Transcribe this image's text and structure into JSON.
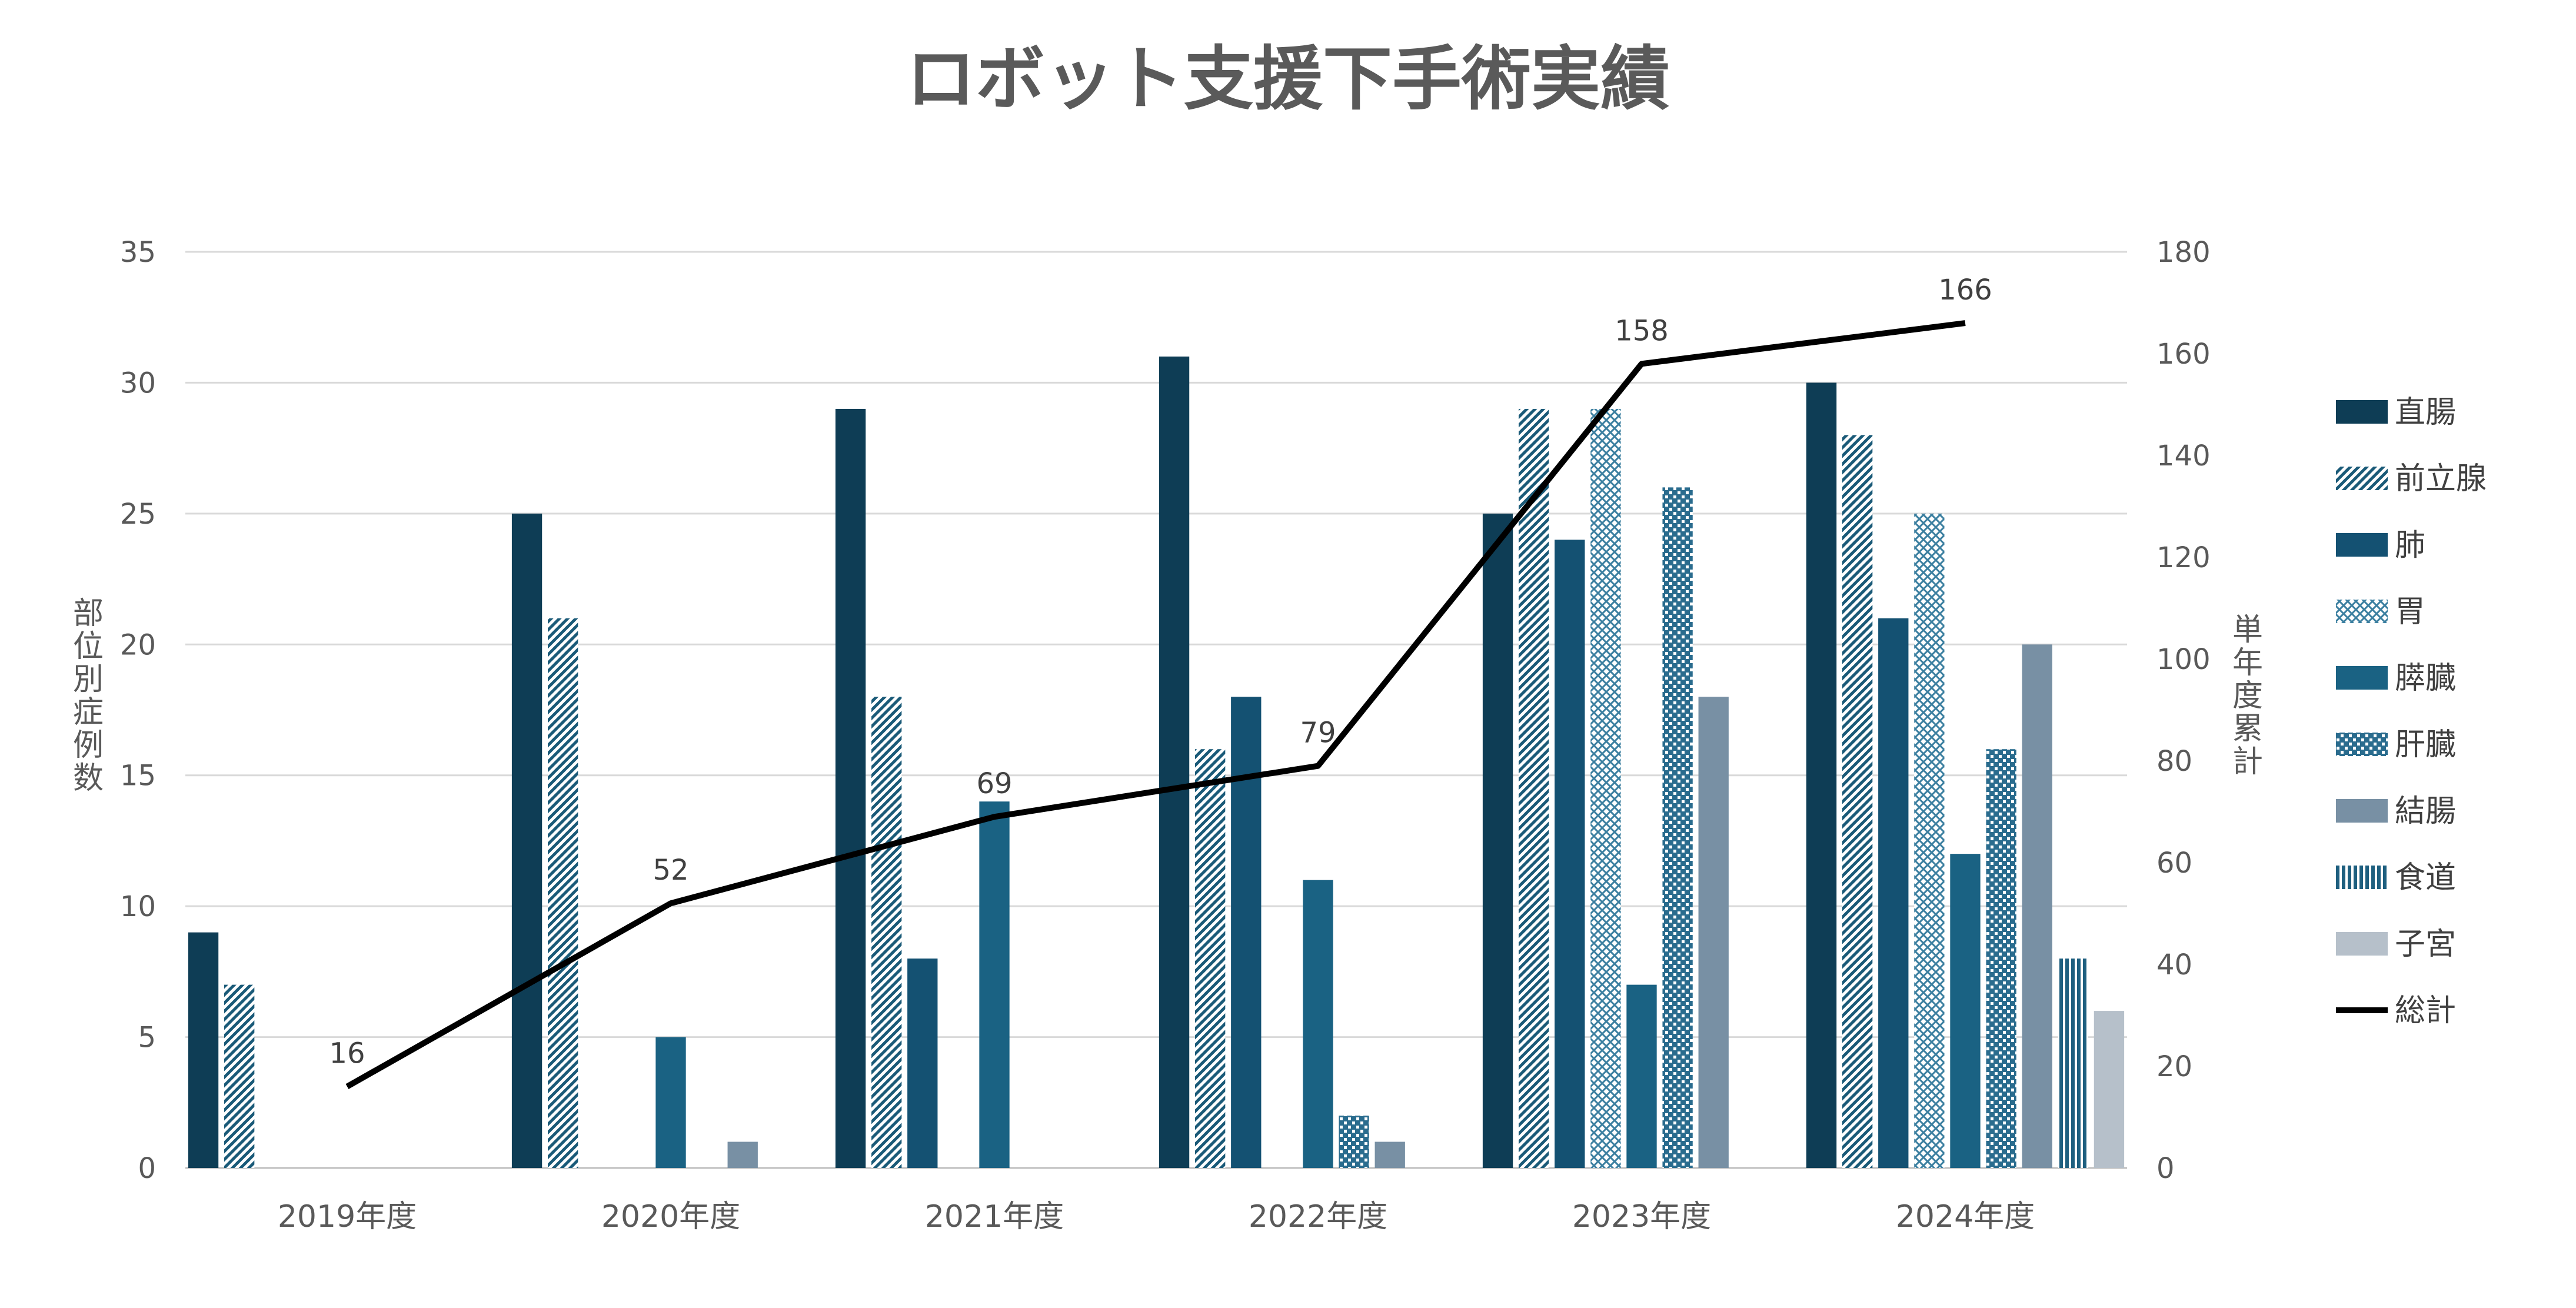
{
  "chart_data": {
    "type": "bar",
    "title": "ロボット支援下手術実績",
    "categories": [
      "2019年度",
      "2020年度",
      "2021年度",
      "2022年度",
      "2023年度",
      "2024年度"
    ],
    "ylabel": "部位別症例数",
    "y2label": "単年度累計",
    "ylim": [
      0,
      35
    ],
    "yticks": [
      0,
      5,
      10,
      15,
      20,
      25,
      30,
      35
    ],
    "y2lim": [
      0,
      180
    ],
    "y2ticks": [
      0,
      20,
      40,
      60,
      80,
      100,
      120,
      140,
      160,
      180
    ],
    "grid": true,
    "legend": "right",
    "series": [
      {
        "name": "直腸",
        "type": "bar",
        "fill": "solid",
        "color": "#0e3d55",
        "values": [
          9,
          25,
          29,
          31,
          25,
          30
        ]
      },
      {
        "name": "前立腺",
        "type": "bar",
        "fill": "diagonal",
        "color": "#1a5a78",
        "values": [
          7,
          21,
          18,
          16,
          29,
          28
        ]
      },
      {
        "name": "肺",
        "type": "bar",
        "fill": "solid",
        "color": "#145172",
        "values": [
          0,
          0,
          8,
          18,
          24,
          21
        ]
      },
      {
        "name": "胃",
        "type": "bar",
        "fill": "crosshatch",
        "color": "#3b7fa0",
        "values": [
          0,
          0,
          0,
          0,
          29,
          25
        ]
      },
      {
        "name": "膵臓",
        "type": "bar",
        "fill": "solid",
        "color": "#1a6283",
        "values": [
          0,
          5,
          14,
          11,
          7,
          12
        ]
      },
      {
        "name": "肝臓",
        "type": "bar",
        "fill": "checker",
        "color": "#2a6c8e",
        "values": [
          0,
          0,
          0,
          2,
          26,
          16
        ]
      },
      {
        "name": "結腸",
        "type": "bar",
        "fill": "solid",
        "color": "#7890a4",
        "values": [
          0,
          1,
          0,
          1,
          18,
          20
        ]
      },
      {
        "name": "食道",
        "type": "bar",
        "fill": "vertical",
        "color": "#1e5f7f",
        "values": [
          0,
          0,
          0,
          0,
          0,
          8
        ]
      },
      {
        "name": "子宮",
        "type": "bar",
        "fill": "solid",
        "color": "#b6c0ca",
        "values": [
          0,
          0,
          0,
          0,
          0,
          6
        ]
      },
      {
        "name": "総計",
        "type": "line",
        "axis": "right",
        "color": "#000000",
        "values": [
          16,
          52,
          69,
          79,
          158,
          166
        ]
      }
    ]
  }
}
